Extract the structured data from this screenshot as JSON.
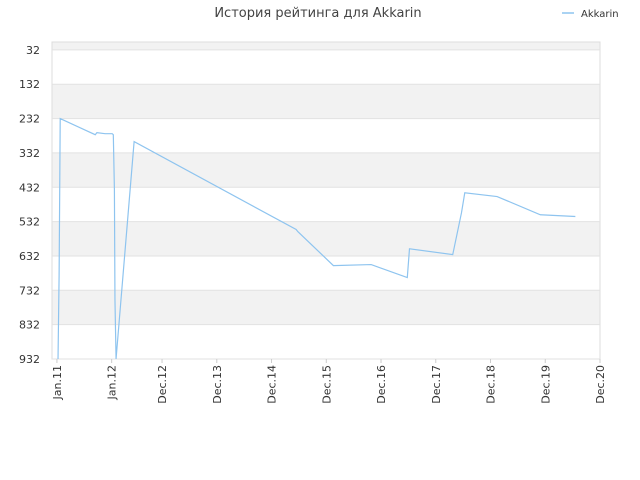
{
  "chart_data": {
    "type": "line",
    "title": "История рейтинга для Akkarin",
    "series": [
      {
        "name": "Akkarin",
        "color": "#8ec4ef",
        "x": [
          2011.02,
          2011.04,
          2011.06,
          2011.7,
          2011.73,
          2011.88,
          2012.01,
          2012.03,
          2012.05,
          2012.06,
          2012.08,
          2012.41,
          2015.37,
          2015.4,
          2016.05,
          2016.74,
          2017.4,
          2017.44,
          2018.23,
          2018.39,
          2018.45,
          2019.04,
          2019.83,
          2020.47
        ],
        "values": [
          932,
          686,
          232,
          279,
          273,
          276,
          276,
          279,
          439,
          759,
          932,
          299,
          555,
          561,
          660,
          657,
          695,
          611,
          628,
          506,
          448,
          459,
          512,
          517
        ]
      }
    ],
    "xlim": [
      2010.91,
      2020.92
    ],
    "xticks": [
      {
        "value": 2011,
        "label": "Jan.11"
      },
      {
        "value": 2012,
        "label": "Jan.12"
      },
      {
        "value": 2012.92,
        "label": "Dec.12"
      },
      {
        "value": 2013.92,
        "label": "Dec.13"
      },
      {
        "value": 2014.92,
        "label": "Dec.14"
      },
      {
        "value": 2015.92,
        "label": "Dec.15"
      },
      {
        "value": 2016.92,
        "label": "Dec.16"
      },
      {
        "value": 2017.92,
        "label": "Dec.17"
      },
      {
        "value": 2018.92,
        "label": "Dec.18"
      },
      {
        "value": 2019.92,
        "label": "Dec.19"
      },
      {
        "value": 2020.92,
        "label": "Dec.20"
      }
    ],
    "ylim": [
      932,
      9
    ],
    "yticks": [
      32,
      132,
      232,
      332,
      432,
      532,
      632,
      732,
      832,
      932
    ],
    "grid": true,
    "legend": "top-right"
  }
}
